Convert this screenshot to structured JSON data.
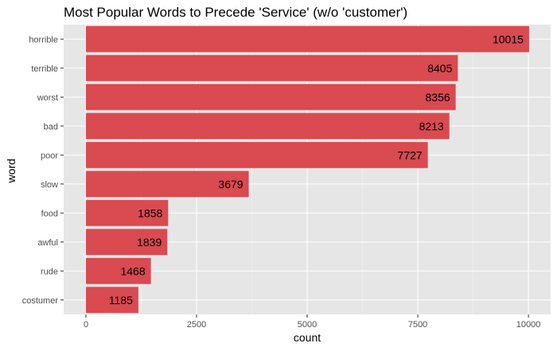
{
  "chart_data": {
    "type": "bar",
    "orientation": "horizontal",
    "title": "Most Popular Words to Precede 'Service' (w/o 'customer')",
    "xlabel": "count",
    "ylabel": "word",
    "categories": [
      "horrible",
      "terrible",
      "worst",
      "bad",
      "poor",
      "slow",
      "food",
      "awful",
      "rude",
      "costumer"
    ],
    "values": [
      10015,
      8405,
      8356,
      8213,
      7727,
      3679,
      1858,
      1839,
      1468,
      1185
    ],
    "data_labels": [
      "10015",
      "8405",
      "8356",
      "8213",
      "7727",
      "3679",
      "1858",
      "1839",
      "1468",
      "1185"
    ],
    "xlim": [
      0,
      10500
    ],
    "x_ticks": [
      0,
      2500,
      5000,
      7500,
      10000
    ],
    "x_tick_labels": [
      "0",
      "2500",
      "5000",
      "7500",
      "10000"
    ],
    "grid": true,
    "legend": "none",
    "colors": {
      "bar": "#d94a51",
      "panel_background": "#e6e6e6",
      "grid_major": "#ffffff",
      "grid_minor": "#f2f2f2"
    }
  }
}
